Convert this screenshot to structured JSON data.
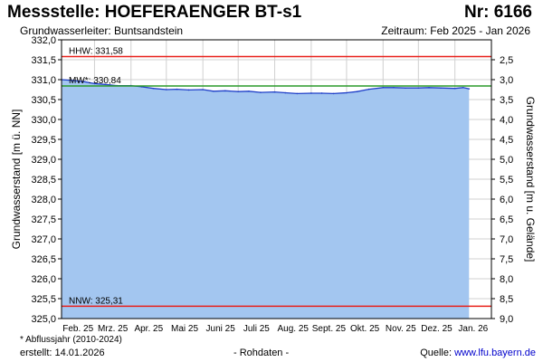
{
  "header": {
    "title": "Messstelle: HOEFERAENGER BT-s1",
    "number": "Nr: 6166",
    "aquifer": "Grundwasserleiter: Buntsandstein",
    "period": "Zeitraum: Feb 2025 - Jan 2026"
  },
  "footer": {
    "footnote": "* Abflussjahr (2010-2024)",
    "created": "erstellt:  14.01.2026",
    "raw": "- Rohdaten -",
    "source_label": "Quelle: ",
    "source_link": "www.lfu.bayern.de"
  },
  "colors": {
    "area_fill": "#a3c6f0",
    "series_line": "#1f3fc8",
    "hhw_line": "#e8201a",
    "nnw_line": "#e8201a",
    "mw_line": "#2a9a2a",
    "grid": "#d0d0d0"
  },
  "chart_data": {
    "type": "area",
    "ylabel": "Grundwasserstand [m ü. NN]",
    "ylabel_right": "Grundwasserstand [m u. Gelände]",
    "ylim": [
      325.0,
      332.0
    ],
    "y_ticks": [
      "325,0",
      "325,5",
      "326,0",
      "326,5",
      "327,0",
      "327,5",
      "328,0",
      "328,5",
      "329,0",
      "329,5",
      "330,0",
      "330,5",
      "331,0",
      "331,5",
      "332,0"
    ],
    "y2_ticks": [
      "9,0",
      "8,5",
      "8,0",
      "7,5",
      "7,0",
      "6,5",
      "6,0",
      "5,5",
      "5,0",
      "4,5",
      "4,0",
      "3,5",
      "3,0",
      "2,5"
    ],
    "x_ticks": [
      "Feb. 25",
      "Mrz. 25",
      "Apr. 25",
      "Mai 25",
      "Juni 25",
      "Juli 25",
      "Aug. 25",
      "Sept. 25",
      "Okt. 25",
      "Nov. 25",
      "Dez. 25",
      "Jan. 26"
    ],
    "grid": true,
    "reference_lines": [
      {
        "label": "HHW: 331,58",
        "value": 331.58
      },
      {
        "label": "MW*: 330,84",
        "value": 330.84
      },
      {
        "label": "NNW: 325,31",
        "value": 325.31
      }
    ],
    "series": [
      {
        "x": [
          "2025-02-01",
          "2025-02-10",
          "2025-02-20",
          "2025-03-01",
          "2025-03-10",
          "2025-03-20",
          "2025-04-01",
          "2025-04-10",
          "2025-04-20",
          "2025-05-01",
          "2025-05-10",
          "2025-05-20",
          "2025-06-01",
          "2025-06-10",
          "2025-06-20",
          "2025-07-01",
          "2025-07-10",
          "2025-07-20",
          "2025-08-01",
          "2025-08-10",
          "2025-08-20",
          "2025-09-01",
          "2025-09-10",
          "2025-09-20",
          "2025-10-01",
          "2025-10-10",
          "2025-10-20",
          "2025-11-01",
          "2025-11-10",
          "2025-11-20",
          "2025-12-01",
          "2025-12-10",
          "2025-12-20",
          "2026-01-01",
          "2026-01-08",
          "2026-01-13"
        ],
        "values": [
          331.0,
          330.98,
          330.95,
          330.9,
          330.88,
          330.85,
          330.85,
          330.82,
          330.78,
          330.75,
          330.76,
          330.74,
          330.75,
          330.71,
          330.72,
          330.7,
          330.71,
          330.68,
          330.69,
          330.67,
          330.65,
          330.66,
          330.66,
          330.65,
          330.67,
          330.7,
          330.76,
          330.8,
          330.8,
          330.79,
          330.79,
          330.8,
          330.79,
          330.78,
          330.8,
          330.77
        ]
      }
    ]
  }
}
